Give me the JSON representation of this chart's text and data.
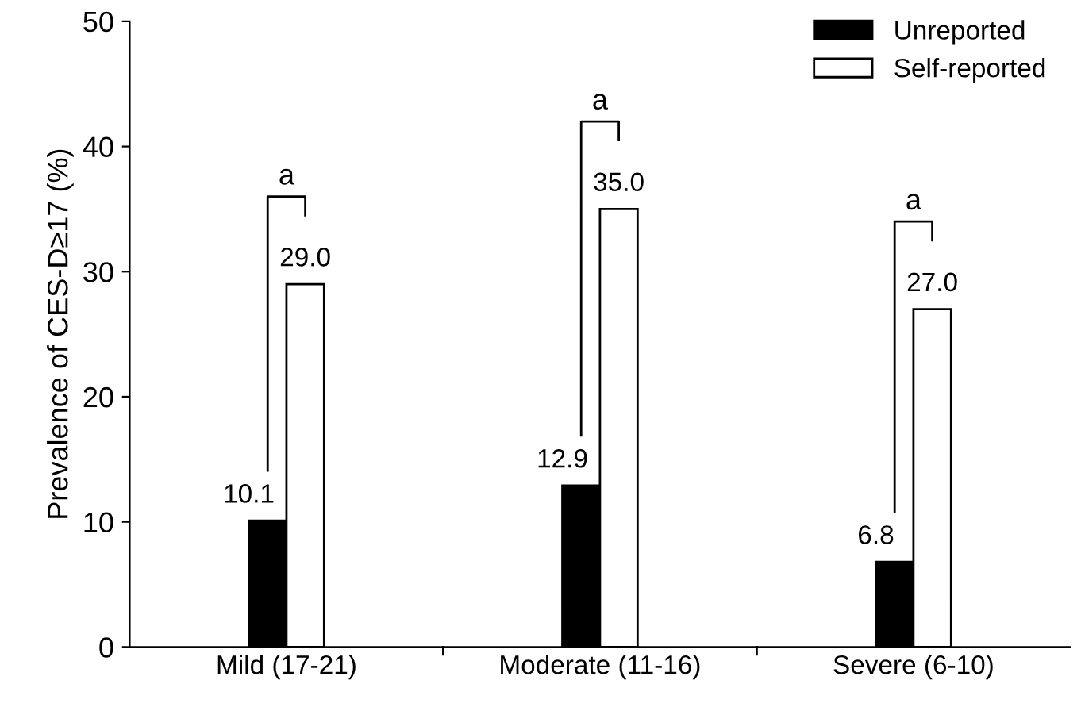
{
  "chart_data": {
    "type": "bar",
    "ylabel": "Prevalence of CES-D≥17 (%)",
    "categories": [
      "Mild (17-21)",
      "Moderate (11-16)",
      "Severe (6-10)"
    ],
    "series": [
      {
        "name": "Unreported",
        "color": "#000000",
        "values": [
          10.1,
          12.9,
          6.8
        ],
        "value_labels": [
          "10.1",
          "12.9",
          "6.8"
        ]
      },
      {
        "name": "Self-reported",
        "color": "#ffffff",
        "values": [
          29.0,
          35.0,
          27.0
        ],
        "value_labels": [
          "29.0",
          "35.0",
          "27.0"
        ]
      }
    ],
    "ylim": [
      0,
      50
    ],
    "yticks": [
      0,
      10,
      20,
      30,
      40,
      50
    ],
    "grid": false,
    "legend": "top right",
    "annotations": [
      "a",
      "a",
      "a"
    ]
  }
}
